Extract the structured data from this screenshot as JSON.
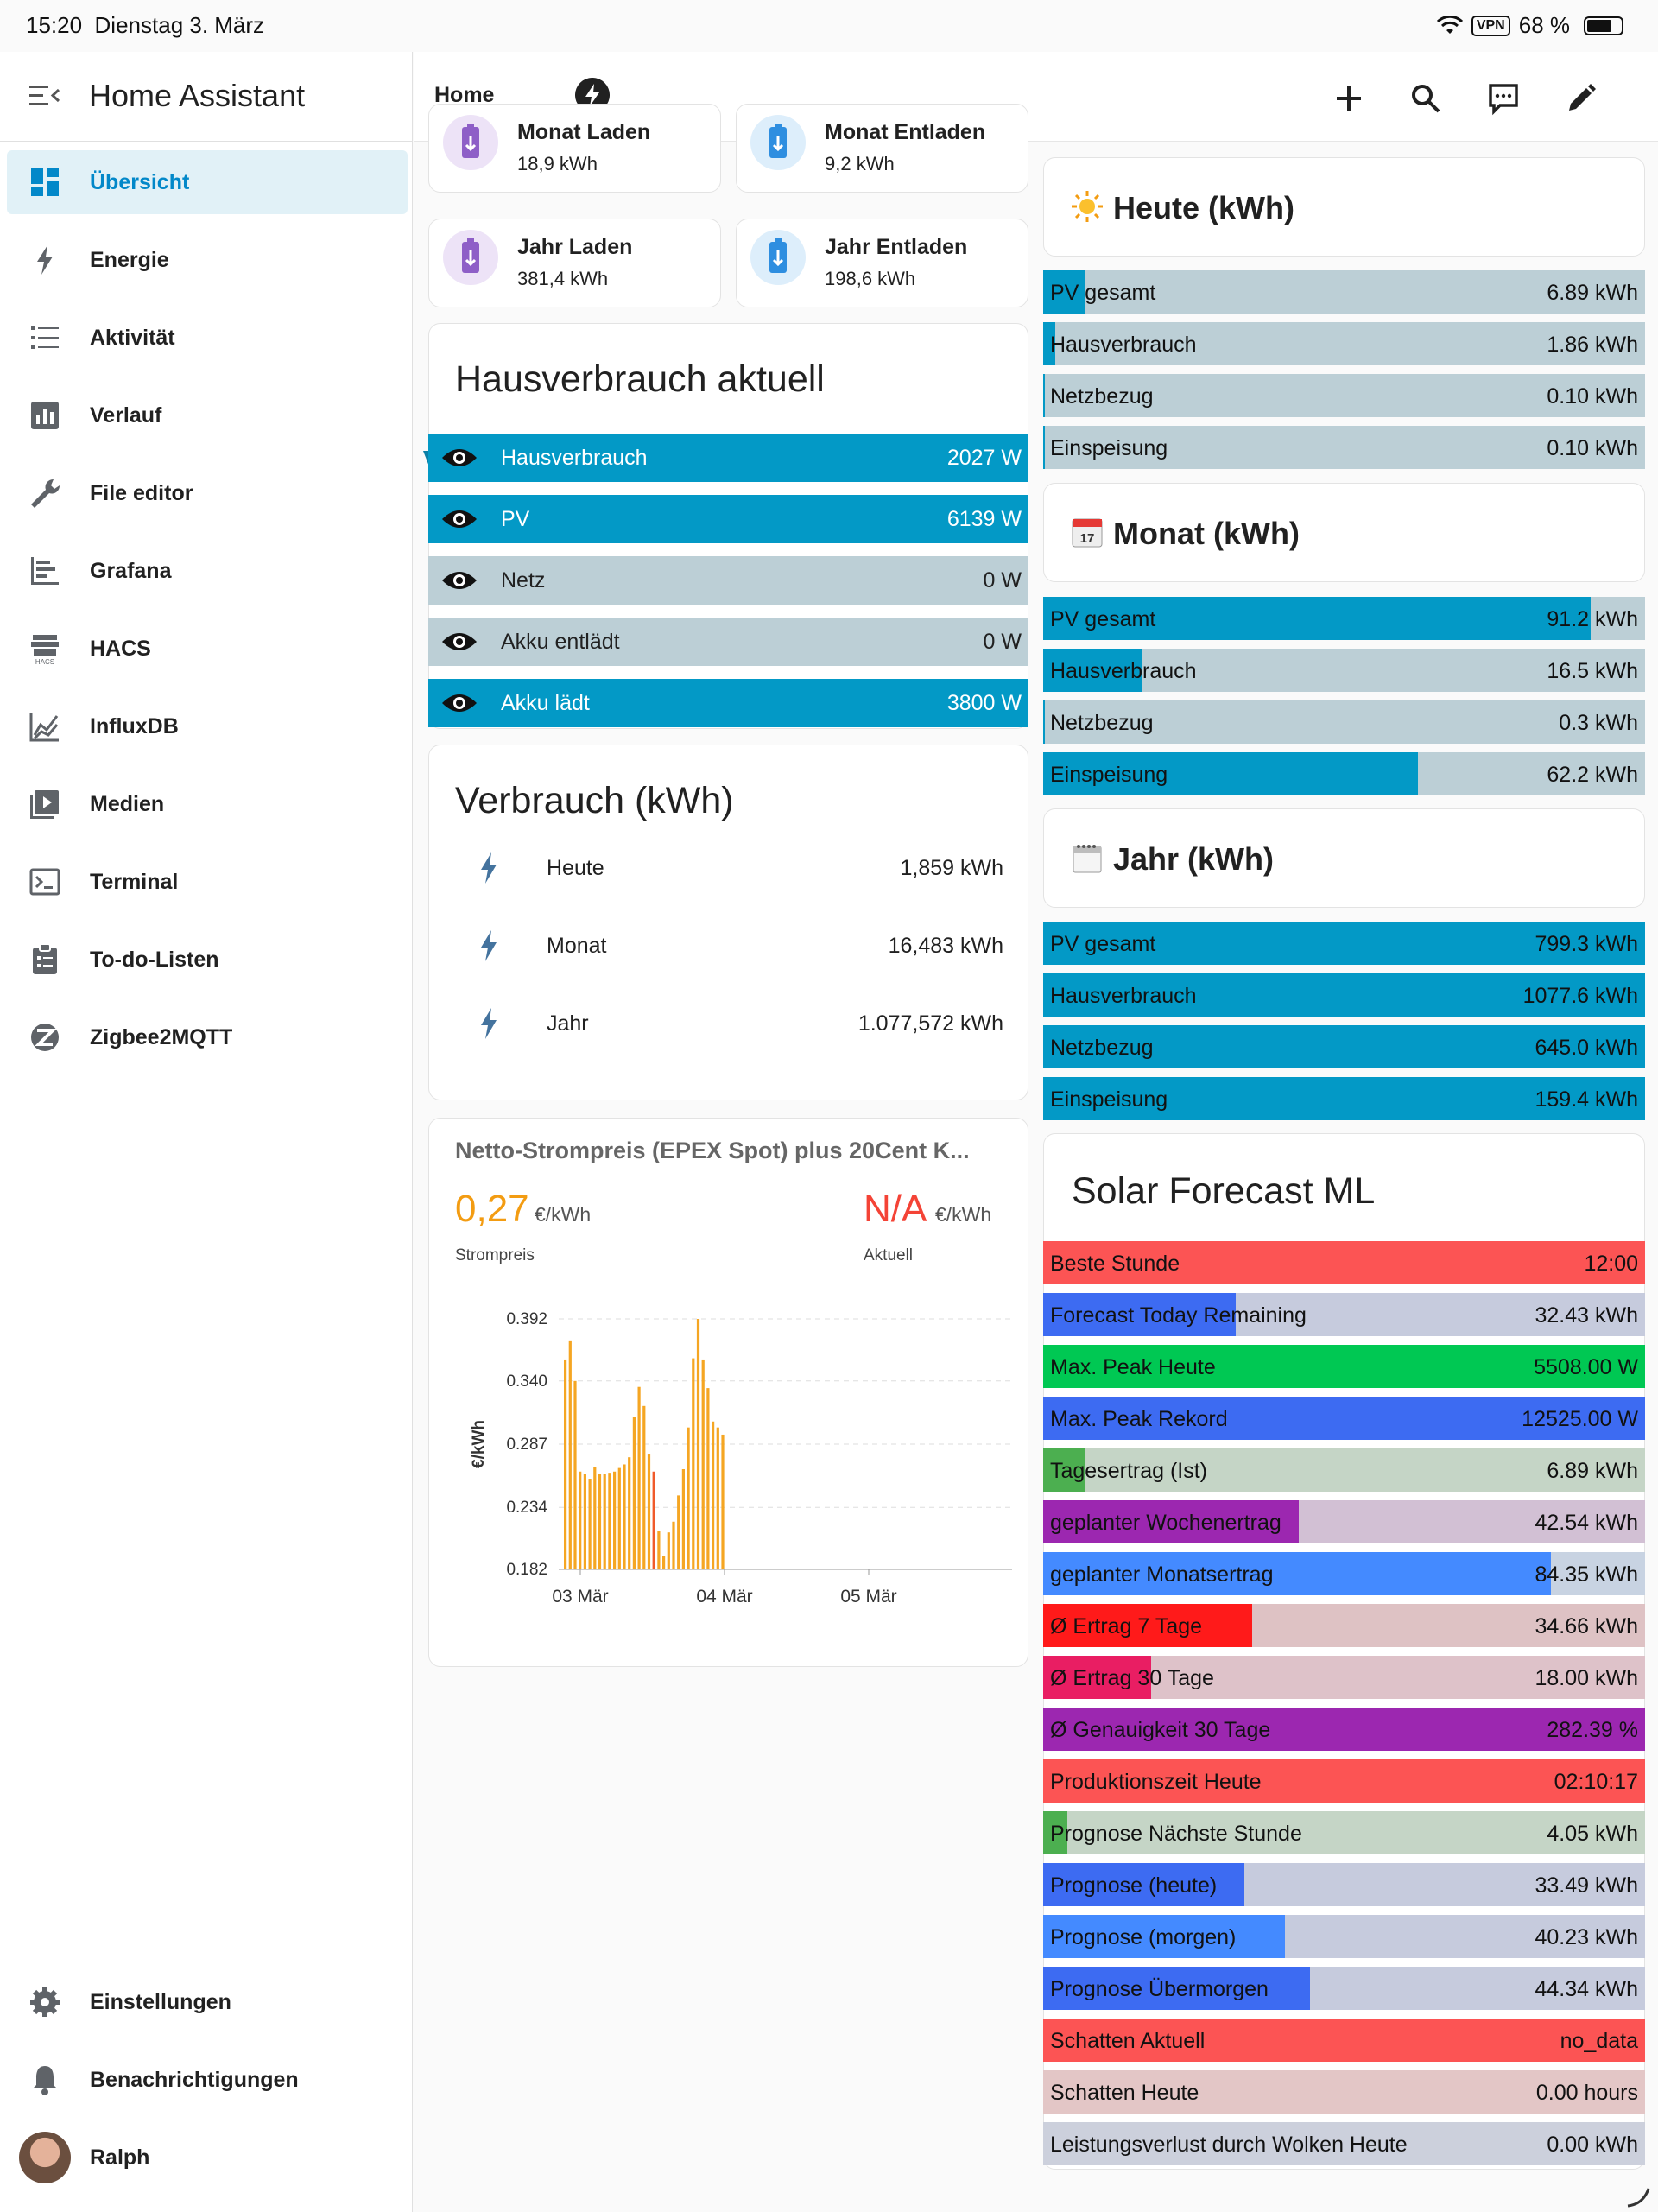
{
  "status": {
    "time": "15:20",
    "date": "Dienstag 3. März",
    "vpn": "VPN",
    "battery": "68 %"
  },
  "sidebar": {
    "title": "Home Assistant",
    "items": [
      {
        "label": "Übersicht",
        "icon": "dashboard-icon"
      },
      {
        "label": "Energie",
        "icon": "lightning-icon"
      },
      {
        "label": "Aktivität",
        "icon": "list-icon"
      },
      {
        "label": "Verlauf",
        "icon": "chart-bar-icon"
      },
      {
        "label": "File editor",
        "icon": "wrench-icon"
      },
      {
        "label": "Grafana",
        "icon": "grafana-icon"
      },
      {
        "label": "HACS",
        "icon": "hacs-icon"
      },
      {
        "label": "InfluxDB",
        "icon": "line-chart-icon"
      },
      {
        "label": "Medien",
        "icon": "media-icon"
      },
      {
        "label": "Terminal",
        "icon": "terminal-icon"
      },
      {
        "label": "To-do-Listen",
        "icon": "clipboard-icon"
      },
      {
        "label": "Zigbee2MQTT",
        "icon": "zigbee-icon"
      }
    ],
    "settings": "Einstellungen",
    "notifications": "Benachrichtigungen",
    "user": "Ralph"
  },
  "topbar": {
    "tab_home": "Home"
  },
  "akku": [
    {
      "title": "Monat Laden",
      "value": "18,9 kWh",
      "color": "#ede3f7",
      "icon_color": "#8e5fc7"
    },
    {
      "title": "Monat Entladen",
      "value": "9,2 kWh",
      "color": "#ddeefb",
      "icon_color": "#2e8ee0"
    },
    {
      "title": "Jahr Laden",
      "value": "381,4 kWh",
      "color": "#ede3f7",
      "icon_color": "#8e5fc7"
    },
    {
      "title": "Jahr Entladen",
      "value": "198,6 kWh",
      "color": "#ddeefb",
      "icon_color": "#2e8ee0"
    }
  ],
  "hausverbrauch": {
    "title": "Hausverbrauch aktuell",
    "rows": [
      {
        "label": "Hausverbrauch",
        "value": "2027 W",
        "active": true
      },
      {
        "label": "PV",
        "value": "6139 W",
        "active": true
      },
      {
        "label": "Netz",
        "value": "0 W",
        "active": false
      },
      {
        "label": "Akku entlädt",
        "value": "0 W",
        "active": false
      },
      {
        "label": "Akku lädt",
        "value": "3800 W",
        "active": true
      }
    ]
  },
  "verbrauch": {
    "title": "Verbrauch (kWh)",
    "rows": [
      {
        "label": "Heute",
        "value": "1,859 kWh"
      },
      {
        "label": "Monat",
        "value": "16,483 kWh"
      },
      {
        "label": "Jahr",
        "value": "1.077,572 kWh"
      }
    ]
  },
  "strompreis": {
    "title": "Netto-Strompreis (EPEX Spot) plus 20Cent K...",
    "price": "0,27",
    "unit": "€/kWh",
    "price_label": "Strompreis",
    "current": "N/A",
    "current_unit": "€/kWh",
    "current_label": "Aktuell"
  },
  "chart_data": {
    "type": "bar",
    "ylabel": "€/kWh",
    "yticks": [
      "0.392",
      "0.340",
      "0.287",
      "0.234",
      "0.182"
    ],
    "ylim": [
      0.182,
      0.392
    ],
    "xticks": [
      "03 Mär",
      "04 Mär",
      "05 Mär"
    ],
    "values": [
      0.358,
      0.374,
      0.34,
      0.264,
      0.262,
      0.258,
      0.268,
      0.262,
      0.262,
      0.263,
      0.264,
      0.267,
      0.27,
      0.276,
      0.31,
      0.335,
      0.319,
      0.279,
      0.264,
      0.214,
      0.193,
      0.213,
      0.222,
      0.244,
      0.266,
      0.301,
      0.359,
      0.392,
      0.358,
      0.334,
      0.306,
      0.301,
      0.295
    ],
    "highlight_index": 18,
    "bar_color": "#f5a623",
    "highlight_color": "#f05a2a"
  },
  "heute": {
    "title": "Heute (kWh)",
    "rows": [
      {
        "label": "PV gesamt",
        "value": "6.89 kWh",
        "fill": 0.07
      },
      {
        "label": "Hausverbrauch",
        "value": "1.86 kWh",
        "fill": 0.02
      },
      {
        "label": "Netzbezug",
        "value": "0.10 kWh",
        "fill": 0.003
      },
      {
        "label": "Einspeisung",
        "value": "0.10 kWh",
        "fill": 0.003
      }
    ]
  },
  "monat": {
    "title": "Monat (kWh)",
    "rows": [
      {
        "label": "PV gesamt",
        "value": "91.2 kWh",
        "fill": 0.91
      },
      {
        "label": "Hausverbrauch",
        "value": "16.5 kWh",
        "fill": 0.165
      },
      {
        "label": "Netzbezug",
        "value": "0.3 kWh",
        "fill": 0.003
      },
      {
        "label": "Einspeisung",
        "value": "62.2 kWh",
        "fill": 0.622
      }
    ]
  },
  "jahr": {
    "title": "Jahr (kWh)",
    "rows": [
      {
        "label": "PV gesamt",
        "value": "799.3 kWh",
        "fill": 1
      },
      {
        "label": "Hausverbrauch",
        "value": "1077.6 kWh",
        "fill": 1
      },
      {
        "label": "Netzbezug",
        "value": "645.0 kWh",
        "fill": 1
      },
      {
        "label": "Einspeisung",
        "value": "159.4 kWh",
        "fill": 1
      }
    ]
  },
  "solar": {
    "title": "Solar Forecast ML",
    "rows": [
      {
        "label": "Beste Stunde",
        "value": "12:00",
        "fill": 1,
        "color": "#fc5454",
        "bg": "#f1c3c3"
      },
      {
        "label": "Forecast Today Remaining",
        "value": "32.43 kWh",
        "fill": 0.32,
        "color": "#3d6bf2",
        "bg": "#c6cbdd"
      },
      {
        "label": "Max. Peak Heute",
        "value": "5508.00 W",
        "fill": 1,
        "color": "#00c853",
        "bg": "#bdd9c5"
      },
      {
        "label": "Max. Peak Rekord",
        "value": "12525.00 W",
        "fill": 1,
        "color": "#3d6bf2",
        "bg": "#c6cbdd"
      },
      {
        "label": "Tagesertrag (Ist)",
        "value": "6.89 kWh",
        "fill": 0.07,
        "color": "#4caf50",
        "bg": "#c5d5c6"
      },
      {
        "label": "geplanter Wochenertrag",
        "value": "42.54 kWh",
        "fill": 0.425,
        "color": "#9c27b0",
        "bg": "#d2c0d4"
      },
      {
        "label": "geplanter Monatsertrag",
        "value": "84.35 kWh",
        "fill": 0.843,
        "color": "#448aff",
        "bg": "#c8d3e2"
      },
      {
        "label": "Ø Ertrag 7 Tage",
        "value": "34.66 kWh",
        "fill": 0.347,
        "color": "#ff1a1a",
        "bg": "#dec2c4"
      },
      {
        "label": "Ø Ertrag 30 Tage",
        "value": "18.00 kWh",
        "fill": 0.18,
        "color": "#e91e63",
        "bg": "#dec2c9"
      },
      {
        "label": "Ø Genauigkeit 30 Tage",
        "value": "282.39 %",
        "fill": 1,
        "color": "#9c27b0",
        "bg": "#d2c0d4"
      },
      {
        "label": "Produktionszeit Heute",
        "value": "02:10:17",
        "fill": 1,
        "color": "#fc5454",
        "bg": "#f1c3c3"
      },
      {
        "label": "Prognose Nächste Stunde",
        "value": "4.05 kWh",
        "fill": 0.04,
        "color": "#4caf50",
        "bg": "#c5d5c6"
      },
      {
        "label": "Prognose (heute)",
        "value": "33.49 kWh",
        "fill": 0.335,
        "color": "#3d6bf2",
        "bg": "#c6cbdd"
      },
      {
        "label": "Prognose (morgen)",
        "value": "40.23 kWh",
        "fill": 0.402,
        "color": "#448aff",
        "bg": "#c6cbdd"
      },
      {
        "label": "Prognose Übermorgen",
        "value": "44.34 kWh",
        "fill": 0.443,
        "color": "#3d6bf2",
        "bg": "#c6cbdd"
      },
      {
        "label": "Schatten Aktuell",
        "value": "no_data",
        "fill": 1,
        "color": "#fc5454",
        "bg": "#f1c3c3"
      },
      {
        "label": "Schatten Heute",
        "value": "0.00 hours",
        "fill": 0,
        "color": "#e57373",
        "bg": "#e3c6c6"
      },
      {
        "label": "Leistungsverlust durch Wolken Heute",
        "value": "0.00 kWh",
        "fill": 0,
        "color": "#5c6bc0",
        "bg": "#ccd0dc"
      }
    ]
  },
  "colors": {
    "accent": "#0288c9",
    "bar_blue": "#0399c6",
    "bar_grey": "#bccfd6"
  }
}
